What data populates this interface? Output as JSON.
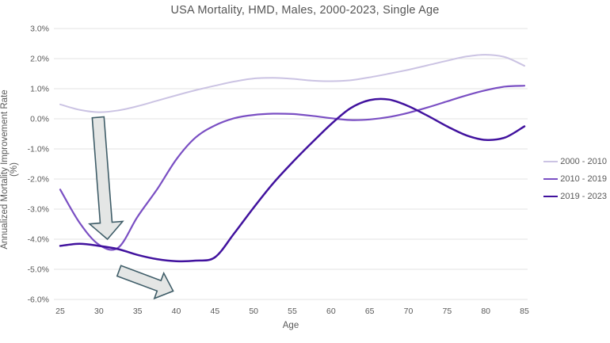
{
  "title": "USA Mortality, HMD, Males, 2000-2023, Single Age",
  "x_axis": {
    "label": "Age",
    "ticks": [
      25,
      30,
      35,
      40,
      45,
      50,
      55,
      60,
      65,
      70,
      75,
      80,
      85
    ]
  },
  "y_axis": {
    "label": "Annualized Mortality Improvement Rate (%)",
    "ticks": [
      {
        "value": 3,
        "label": "3.0%"
      },
      {
        "value": 2,
        "label": "2.0%"
      },
      {
        "value": 1,
        "label": "1.0%"
      },
      {
        "value": 0,
        "label": "0.0%"
      },
      {
        "value": -1,
        "label": "-1.0%"
      },
      {
        "value": -2,
        "label": "-2.0%"
      },
      {
        "value": -3,
        "label": "-3.0%"
      },
      {
        "value": -4,
        "label": "-4.0%"
      },
      {
        "value": -5,
        "label": "-5.0%"
      },
      {
        "value": -6,
        "label": "-6.0%"
      }
    ]
  },
  "legend": [
    {
      "label": "2000 - 2010",
      "color": "#cbc3e3"
    },
    {
      "label": "2010 - 2019",
      "color": "#7a4fc3"
    },
    {
      "label": "2019 - 2023",
      "color": "#41129e"
    }
  ],
  "colors": {
    "gridline": "#e3e3e3",
    "axis_text": "#595959",
    "title_text": "#555555",
    "arrow_fill": "#e4e6e5",
    "arrow_stroke": "#3f5d68"
  },
  "chart_data": {
    "type": "line",
    "title": "USA Mortality, HMD, Males, 2000-2023, Single Age",
    "xlabel": "Age",
    "ylabel": "Annualized Mortality Improvement Rate (%)",
    "xlim": [
      25,
      85
    ],
    "ylim": [
      -6,
      3
    ],
    "y_unit": "percent",
    "grid": "horizontal",
    "legend_position": "right",
    "x": [
      25,
      27.5,
      30,
      32.5,
      35,
      37.5,
      40,
      42.5,
      45,
      47.5,
      50,
      52.5,
      55,
      57.5,
      60,
      62.5,
      65,
      67.5,
      70,
      72.5,
      75,
      77.5,
      80,
      82.5,
      85
    ],
    "series": [
      {
        "name": "2000 - 2010",
        "color": "#cbc3e3",
        "stroke_width": 2,
        "values": [
          0.48,
          0.3,
          0.22,
          0.28,
          0.42,
          0.6,
          0.78,
          0.95,
          1.1,
          1.24,
          1.34,
          1.36,
          1.33,
          1.27,
          1.25,
          1.28,
          1.38,
          1.5,
          1.63,
          1.78,
          1.93,
          2.07,
          2.13,
          2.05,
          1.76
        ]
      },
      {
        "name": "2010 - 2019",
        "color": "#7a4fc3",
        "stroke_width": 2.2,
        "values": [
          -2.35,
          -3.45,
          -4.18,
          -4.28,
          -3.25,
          -2.35,
          -1.35,
          -0.62,
          -0.22,
          0.02,
          0.13,
          0.17,
          0.16,
          0.1,
          0.02,
          -0.04,
          -0.02,
          0.06,
          0.2,
          0.38,
          0.58,
          0.78,
          0.95,
          1.07,
          1.1
        ]
      },
      {
        "name": "2019 - 2023",
        "color": "#41129e",
        "stroke_width": 2.5,
        "values": [
          -4.22,
          -4.15,
          -4.22,
          -4.33,
          -4.52,
          -4.66,
          -4.73,
          -4.71,
          -4.6,
          -3.8,
          -2.95,
          -2.15,
          -1.45,
          -0.8,
          -0.18,
          0.35,
          0.62,
          0.64,
          0.42,
          0.1,
          -0.25,
          -0.55,
          -0.7,
          -0.62,
          -0.25
        ]
      }
    ],
    "annotations": [
      {
        "name": "arrow-down",
        "shape": "block-arrow",
        "from": {
          "age": 29.9,
          "value": 0.05
        },
        "to": {
          "age": 31.1,
          "value": -4.0
        },
        "shaft_half_w": 7.5,
        "head_half_w": 21,
        "head_len": 21
      },
      {
        "name": "arrow-down-right",
        "shape": "block-arrow",
        "from": {
          "age": 32.6,
          "value": -5.05
        },
        "to": {
          "age": 39.6,
          "value": -5.72
        },
        "shaft_half_w": 7,
        "head_half_w": 17,
        "head_len": 19
      }
    ]
  }
}
